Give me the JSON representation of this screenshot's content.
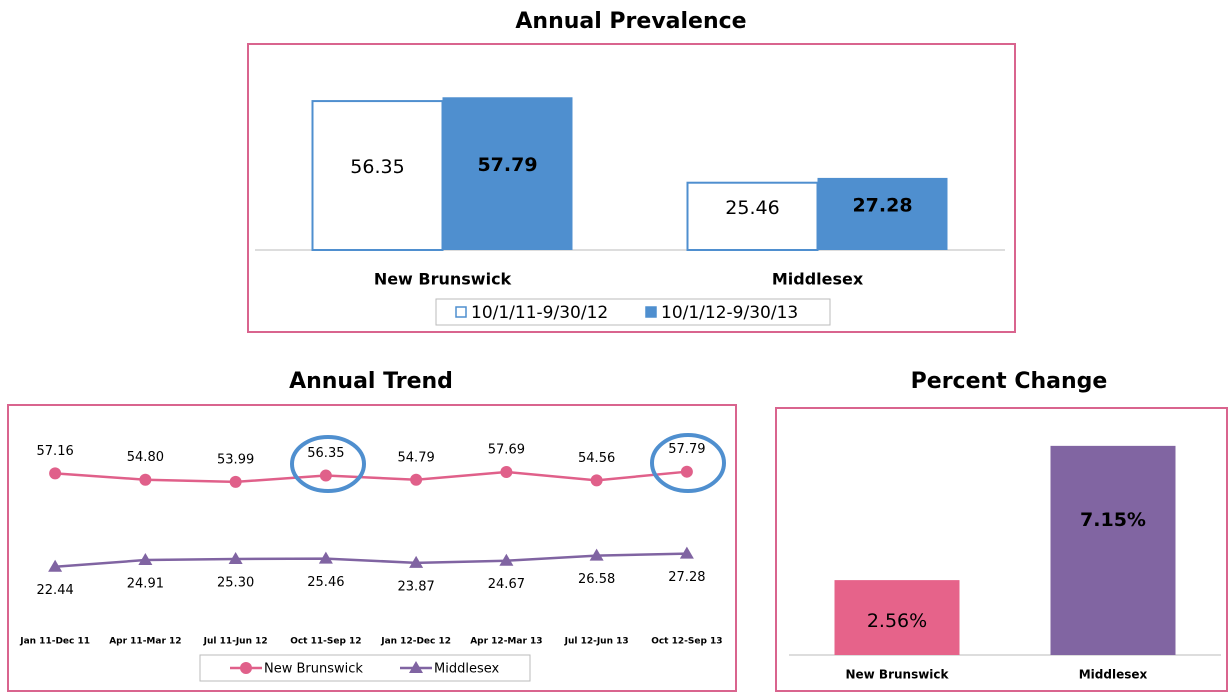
{
  "chart_data": [
    {
      "type": "bar",
      "title": "Annual Prevalence",
      "categories": [
        "New Brunswick",
        "Middlesex"
      ],
      "series": [
        {
          "name": "10/1/11-9/30/12",
          "color": "#4f8fcf",
          "hollow": true,
          "values": [
            56.35,
            25.46
          ]
        },
        {
          "name": "10/1/12-9/30/13",
          "color": "#4f8fcf",
          "values": [
            57.79,
            27.28
          ]
        }
      ],
      "ylim": [
        0,
        70
      ],
      "legend": "bottom"
    },
    {
      "type": "line",
      "title": "Annual Trend",
      "categories": [
        "Jan 11-Dec 11",
        "Apr 11-Mar 12",
        "Jul 11-Jun 12",
        "Oct 11-Sep 12",
        "Jan 12-Dec 12",
        "Apr 12-Mar 13",
        "Jul 12-Jun 13",
        "Oct 12-Sep 13"
      ],
      "series": [
        {
          "name": "New Brunswick",
          "color": "#e0608a",
          "marker": "circle",
          "values": [
            57.16,
            54.8,
            53.99,
            56.35,
            54.79,
            57.69,
            54.56,
            57.79
          ],
          "value_labels": [
            "57.16",
            "54.80",
            "53.99",
            "56.35",
            "54.79",
            "57.69",
            "54.56",
            "57.79"
          ]
        },
        {
          "name": "Middlesex",
          "color": "#8064a2",
          "marker": "triangle",
          "values": [
            22.44,
            24.91,
            25.3,
            25.46,
            23.87,
            24.67,
            26.58,
            27.28
          ],
          "value_labels": [
            "22.44",
            "24.91",
            "25.30",
            "25.46",
            "23.87",
            "24.67",
            "26.58",
            "27.28"
          ]
        }
      ],
      "ylim": [
        0,
        80
      ],
      "legend": "bottom"
    },
    {
      "type": "bar",
      "title": "Percent Change",
      "categories": [
        "New Brunswick",
        "Middlesex"
      ],
      "values": [
        2.56,
        7.15
      ],
      "value_labels": [
        "2.56%",
        "7.15%"
      ],
      "colors": [
        "#e6638a",
        "#8165a2"
      ],
      "ylim": [
        0,
        8
      ]
    }
  ]
}
